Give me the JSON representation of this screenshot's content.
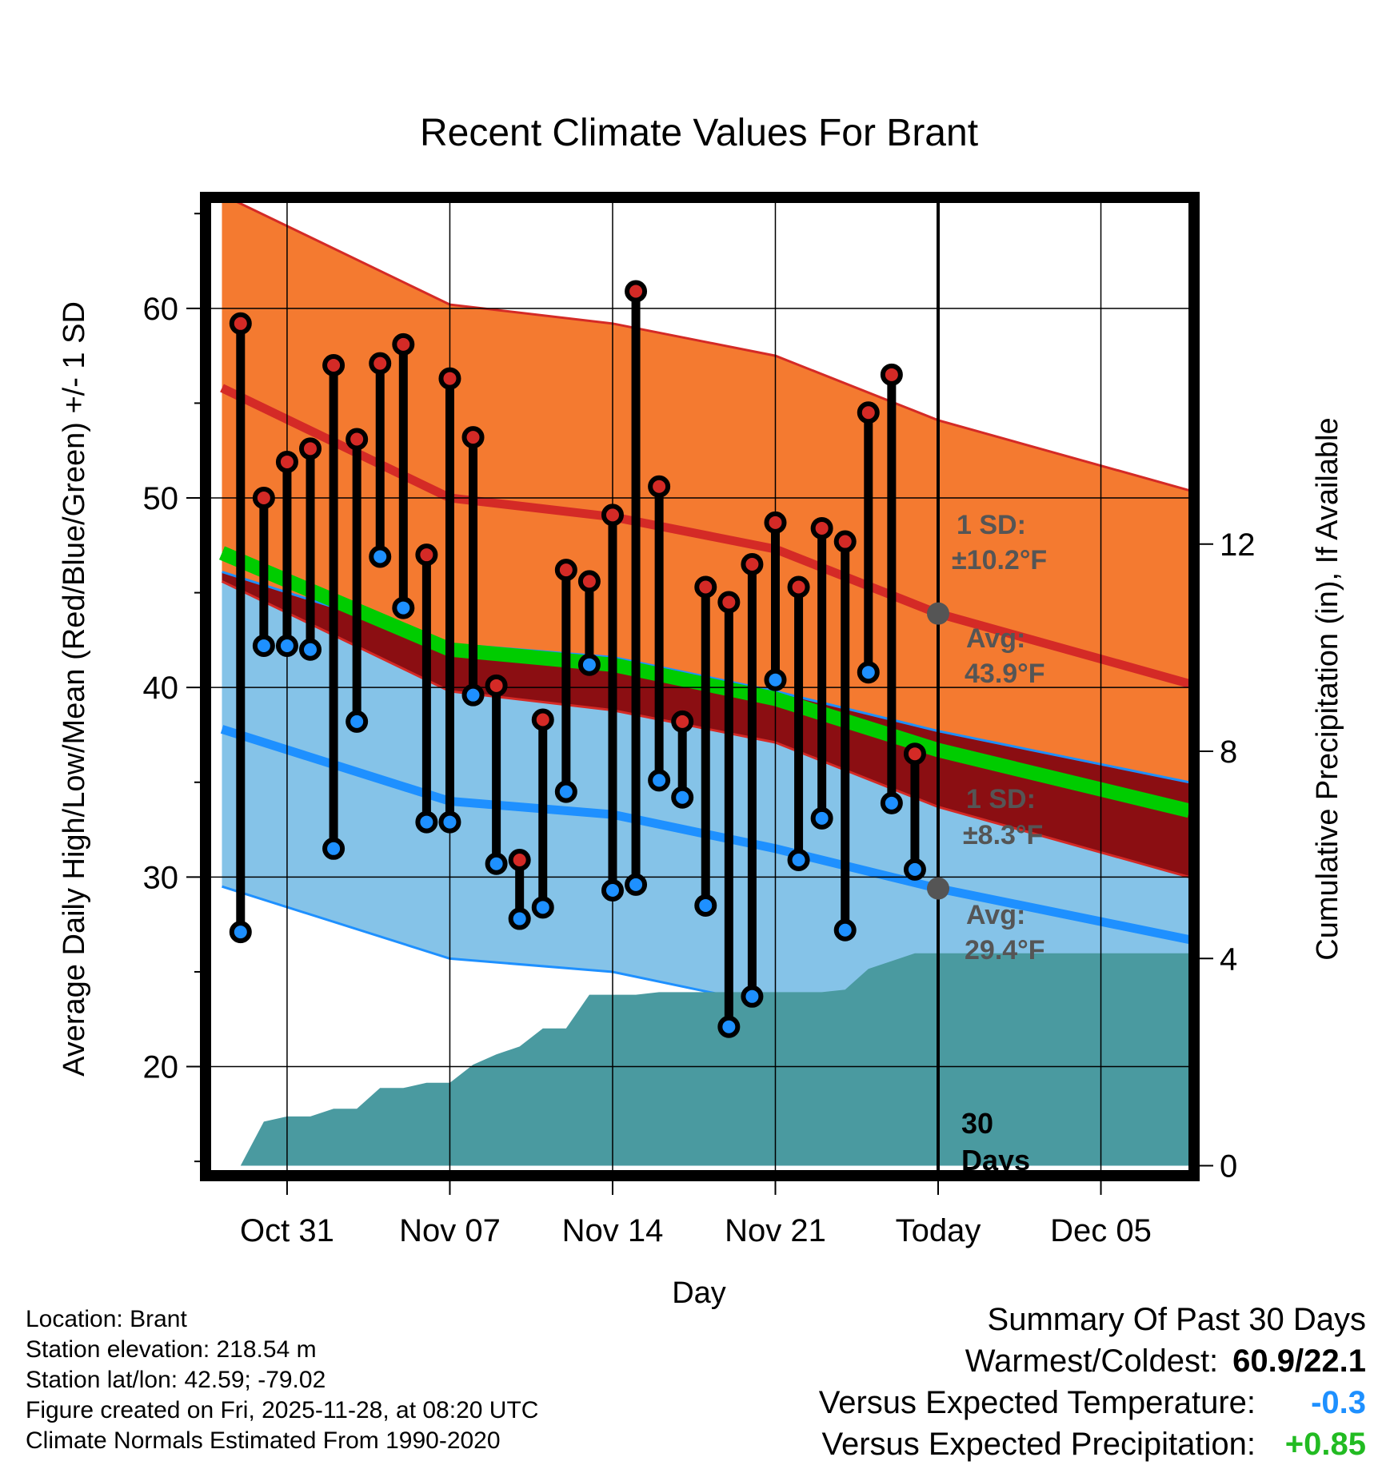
{
  "chart_data": {
    "type": "line",
    "title": "Recent Climate Values For Brant",
    "xlabel": "Day",
    "ylabel": "Average Daily High/Low/Mean (Red/Blue/Green) +/- 1 SD",
    "y2label": "Cumulative Precipitation (in), If Available",
    "xlim": [
      -3.3,
      38.8
    ],
    "ylim": [
      14.5,
      65.6
    ],
    "y2lim": [
      -0.1,
      18.6
    ],
    "x_ticks": [
      {
        "x": 0,
        "label": "Oct 31"
      },
      {
        "x": 7,
        "label": "Nov 07"
      },
      {
        "x": 14,
        "label": "Nov 14"
      },
      {
        "x": 21,
        "label": "Nov 21"
      },
      {
        "x": 28,
        "label": "Today"
      },
      {
        "x": 35,
        "label": "Dec 05"
      }
    ],
    "y_ticks": [
      20,
      30,
      40,
      50,
      60
    ],
    "y2_ticks": [
      0,
      4,
      8,
      12
    ],
    "today_x": 28,
    "today_label_line1": "30",
    "today_label_line2": "Days",
    "normals": {
      "x": [
        -2.8,
        7,
        14,
        21,
        28,
        38.8
      ],
      "high_mean": [
        55.8,
        50.0,
        49.0,
        47.3,
        43.9,
        40.2
      ],
      "high_sd": 10.2,
      "low_mean": [
        37.8,
        34.0,
        33.3,
        31.5,
        29.4,
        26.7
      ],
      "low_sd": 8.3,
      "mean": [
        47.1,
        42.0,
        41.2,
        39.4,
        36.7,
        33.5
      ]
    },
    "series": [
      {
        "name": "Daily High",
        "x": [
          -2,
          -1,
          0,
          1,
          2,
          3,
          4,
          5,
          6,
          7,
          8,
          9,
          10,
          11,
          12,
          13,
          14,
          15,
          16,
          17,
          18,
          19,
          20,
          21,
          22,
          23,
          24,
          25,
          26,
          27
        ],
        "values": [
          59.2,
          50.0,
          51.9,
          52.6,
          57.0,
          53.1,
          57.1,
          58.1,
          47.0,
          56.3,
          53.2,
          40.1,
          30.9,
          38.3,
          46.2,
          45.6,
          49.1,
          60.9,
          50.6,
          38.2,
          45.3,
          44.5,
          46.5,
          48.7,
          45.3,
          48.4,
          47.7,
          54.5,
          56.5,
          36.5
        ]
      },
      {
        "name": "Daily Low",
        "x": [
          -2,
          -1,
          0,
          1,
          2,
          3,
          4,
          5,
          6,
          7,
          8,
          9,
          10,
          11,
          12,
          13,
          14,
          15,
          16,
          17,
          18,
          19,
          20,
          21,
          22,
          23,
          24,
          25,
          26,
          27
        ],
        "values": [
          27.1,
          42.2,
          42.2,
          42.0,
          31.5,
          38.2,
          46.9,
          44.2,
          32.9,
          32.9,
          39.6,
          30.7,
          27.8,
          28.4,
          34.5,
          41.2,
          29.3,
          29.6,
          35.1,
          34.2,
          28.5,
          22.1,
          23.7,
          40.4,
          30.9,
          33.1,
          27.2,
          40.8,
          33.9,
          30.4
        ]
      },
      {
        "name": "Cumulative Precipitation",
        "x": [
          -2,
          -1,
          0,
          1,
          2,
          3,
          4,
          5,
          6,
          7,
          8,
          9,
          10,
          11,
          12,
          13,
          14,
          15,
          16,
          17,
          18,
          19,
          20,
          21,
          22,
          23,
          24,
          25,
          26,
          27,
          28,
          38.8
        ],
        "values": [
          0.0,
          0.85,
          0.95,
          0.95,
          1.1,
          1.1,
          1.5,
          1.5,
          1.6,
          1.6,
          1.95,
          2.15,
          2.3,
          2.65,
          2.65,
          3.3,
          3.3,
          3.3,
          3.35,
          3.35,
          3.35,
          3.35,
          3.35,
          3.35,
          3.35,
          3.35,
          3.4,
          3.8,
          3.95,
          4.1,
          4.1,
          4.1
        ]
      }
    ],
    "annotations": {
      "high_sd_label": "1 SD:",
      "high_sd_value": "±10.2°F",
      "high_avg_label": "Avg:",
      "high_avg_value": "43.9°F",
      "low_sd_label": "1 SD:",
      "low_sd_value": "±8.3°F",
      "low_avg_label": "Avg:",
      "low_avg_value": "29.4°F"
    }
  },
  "footer": {
    "location": "Location: Brant",
    "elevation": "Station elevation: 218.54 m",
    "latlon": "Station lat/lon: 42.59; -79.02",
    "created": "Figure created on Fri, 2025-11-28, at 08:20 UTC",
    "normals": "Climate Normals Estimated From 1990-2020"
  },
  "summary": {
    "title": "Summary Of Past 30 Days",
    "warm_cold_label": "Warmest/Coldest:",
    "warm_cold_value": "60.9/22.1",
    "temp_label": "Versus Expected Temperature:",
    "temp_value": "-0.3",
    "temp_color": "#1E90FF",
    "precip_label": "Versus Expected Precipitation:",
    "precip_value": "+0.85",
    "precip_color": "#22BB22"
  },
  "colors": {
    "high_band": "#F47A30",
    "high_line": "#D42A26",
    "low_band": "#85C3E8",
    "low_line": "#1E90FF",
    "mean_line": "#00CC00",
    "overlap": "#8B0E12",
    "precip": "#4A9AA0"
  }
}
